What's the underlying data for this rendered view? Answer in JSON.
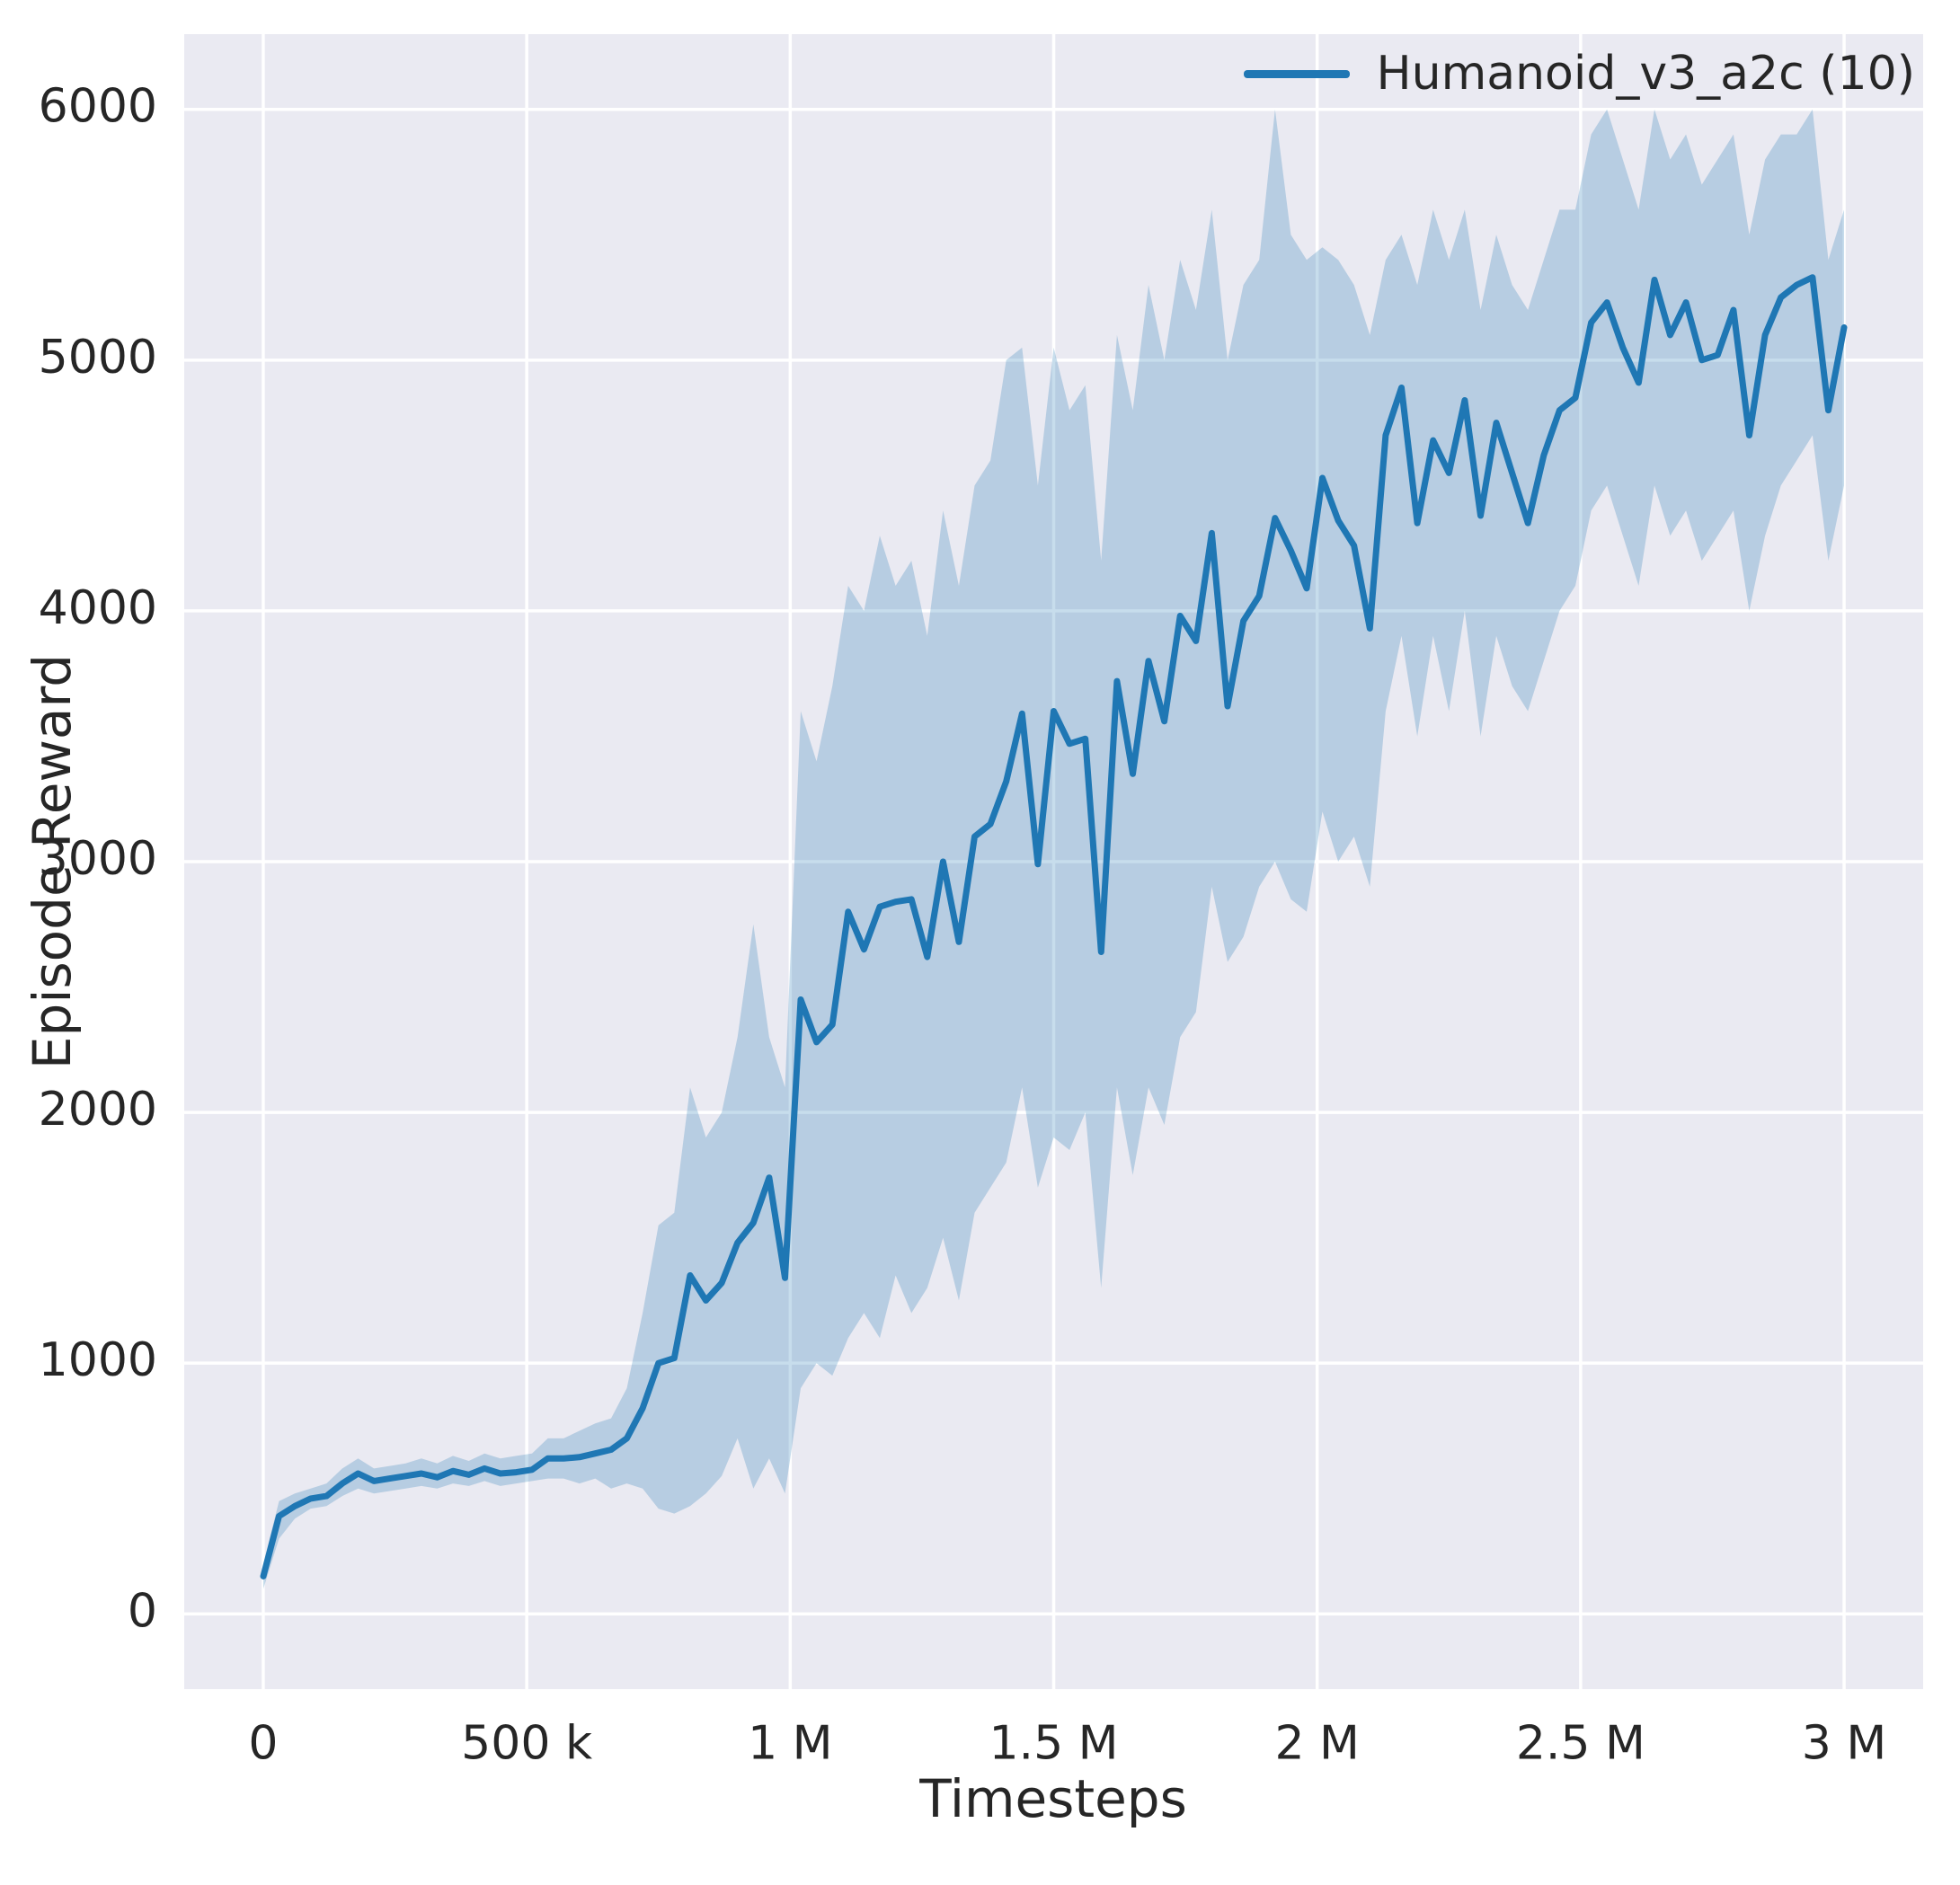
{
  "chart_data": {
    "type": "line",
    "title": "",
    "xlabel": "Timesteps",
    "ylabel": "Episode Reward",
    "grid": true,
    "legend_position": "upper right",
    "xlim_display": [
      -150000,
      3150000
    ],
    "ylim_display": [
      -300,
      6300
    ],
    "x_ticks": [
      {
        "v": 0,
        "label": "0"
      },
      {
        "v": 500000,
        "label": "500 k"
      },
      {
        "v": 1000000,
        "label": "1 M"
      },
      {
        "v": 1500000,
        "label": "1.5 M"
      },
      {
        "v": 2000000,
        "label": "2 M"
      },
      {
        "v": 2500000,
        "label": "2.5 M"
      },
      {
        "v": 3000000,
        "label": "3 M"
      }
    ],
    "y_ticks": [
      {
        "v": 0,
        "label": "0"
      },
      {
        "v": 1000,
        "label": "1000"
      },
      {
        "v": 2000,
        "label": "2000"
      },
      {
        "v": 3000,
        "label": "3000"
      },
      {
        "v": 4000,
        "label": "4000"
      },
      {
        "v": 5000,
        "label": "5000"
      },
      {
        "v": 6000,
        "label": "6000"
      }
    ],
    "colors": {
      "line": "#1f77b4",
      "band_alpha": 0.25,
      "plot_bg": "#eaeaf2",
      "grid": "#ffffff",
      "text": "#262626",
      "figure_bg": "#ffffff"
    },
    "series": [
      {
        "name": "Humanoid_v3_a2c (10)",
        "x": [
          0,
          30000,
          60000,
          90000,
          120000,
          150000,
          180000,
          210000,
          240000,
          270000,
          300000,
          330000,
          360000,
          390000,
          420000,
          450000,
          480000,
          510000,
          540000,
          570000,
          600000,
          630000,
          660000,
          690000,
          720000,
          750000,
          780000,
          810000,
          840000,
          870000,
          900000,
          930000,
          960000,
          990000,
          1020000,
          1050000,
          1080000,
          1110000,
          1140000,
          1170000,
          1200000,
          1230000,
          1260000,
          1290000,
          1320000,
          1350000,
          1380000,
          1410000,
          1440000,
          1470000,
          1500000,
          1530000,
          1560000,
          1590000,
          1620000,
          1650000,
          1680000,
          1710000,
          1740000,
          1770000,
          1800000,
          1830000,
          1860000,
          1890000,
          1920000,
          1950000,
          1980000,
          2010000,
          2040000,
          2070000,
          2100000,
          2130000,
          2160000,
          2190000,
          2220000,
          2250000,
          2280000,
          2310000,
          2340000,
          2370000,
          2400000,
          2430000,
          2460000,
          2490000,
          2520000,
          2550000,
          2580000,
          2610000,
          2640000,
          2670000,
          2700000,
          2730000,
          2760000,
          2790000,
          2820000,
          2850000,
          2880000,
          2910000,
          2940000,
          2970000,
          3000000
        ],
        "y": [
          150,
          390,
          430,
          460,
          470,
          520,
          560,
          530,
          540,
          550,
          560,
          545,
          570,
          555,
          580,
          560,
          565,
          575,
          620,
          620,
          625,
          640,
          655,
          700,
          820,
          1000,
          1020,
          1350,
          1250,
          1320,
          1480,
          1560,
          1740,
          1340,
          2450,
          2280,
          2350,
          2800,
          2650,
          2820,
          2840,
          2850,
          2620,
          3000,
          2680,
          3100,
          3150,
          3320,
          3590,
          2990,
          3600,
          3470,
          3490,
          2640,
          3720,
          3350,
          3800,
          3560,
          3980,
          3880,
          4310,
          3620,
          3960,
          4060,
          4370,
          4240,
          4090,
          4530,
          4360,
          4260,
          3930,
          4700,
          4890,
          4350,
          4680,
          4550,
          4840,
          4380,
          4750,
          4550,
          4350,
          4620,
          4800,
          4850,
          5150,
          5230,
          5050,
          4910,
          5320,
          5100,
          5230,
          5000,
          5020,
          5200,
          4700,
          5100,
          5250,
          5300,
          5330,
          4800,
          5130
        ],
        "band_lower": [
          100,
          300,
          380,
          420,
          430,
          470,
          500,
          480,
          490,
          500,
          510,
          500,
          520,
          510,
          530,
          510,
          520,
          530,
          540,
          540,
          520,
          540,
          500,
          520,
          500,
          420,
          400,
          430,
          480,
          550,
          700,
          500,
          620,
          480,
          900,
          1000,
          950,
          1100,
          1200,
          1100,
          1350,
          1200,
          1300,
          1500,
          1250,
          1600,
          1700,
          1800,
          2100,
          1700,
          1900,
          1850,
          2000,
          1300,
          2100,
          1750,
          2100,
          1950,
          2300,
          2400,
          2900,
          2600,
          2700,
          2900,
          3000,
          2850,
          2800,
          3200,
          3000,
          3100,
          2900,
          3600,
          3900,
          3500,
          3900,
          3600,
          4000,
          3500,
          3900,
          3700,
          3600,
          3800,
          4000,
          4100,
          4400,
          4500,
          4300,
          4100,
          4500,
          4300,
          4400,
          4200,
          4300,
          4400,
          4000,
          4300,
          4500,
          4600,
          4700,
          4200,
          4500
        ],
        "band_upper": [
          200,
          450,
          480,
          500,
          520,
          580,
          620,
          580,
          590,
          600,
          620,
          600,
          630,
          610,
          640,
          620,
          630,
          640,
          700,
          700,
          730,
          760,
          780,
          900,
          1200,
          1550,
          1600,
          2100,
          1900,
          2000,
          2300,
          2750,
          2300,
          2100,
          3600,
          3400,
          3700,
          4100,
          4000,
          4300,
          4100,
          4200,
          3900,
          4400,
          4100,
          4500,
          4600,
          5000,
          5050,
          4500,
          5050,
          4800,
          4900,
          4200,
          5100,
          4800,
          5300,
          5000,
          5400,
          5200,
          5600,
          5000,
          5300,
          5400,
          6000,
          5500,
          5400,
          5450,
          5400,
          5300,
          5100,
          5400,
          5500,
          5300,
          5600,
          5400,
          5600,
          5200,
          5500,
          5300,
          5200,
          5400,
          5600,
          5600,
          5900,
          6000,
          5800,
          5600,
          6000,
          5800,
          5900,
          5700,
          5800,
          5900,
          5500,
          5800,
          5900,
          5900,
          6000,
          5400,
          5600
        ]
      }
    ]
  }
}
